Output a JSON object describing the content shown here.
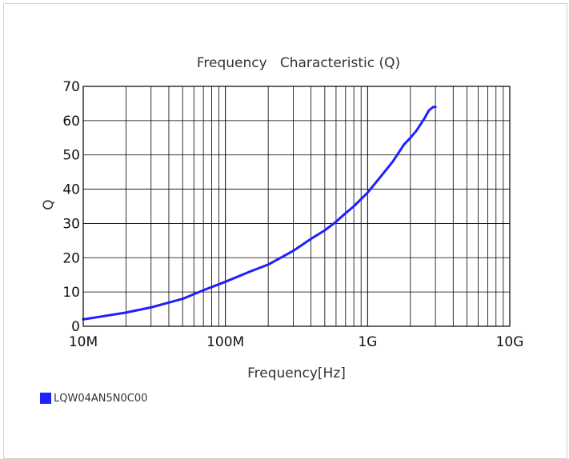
{
  "chart_data": {
    "type": "line",
    "title": "Frequency   Characteristic (Q)",
    "xlabel": "Frequency[Hz]",
    "ylabel": "Q",
    "x_scale": "log",
    "xlim": [
      "10M",
      "10G"
    ],
    "ylim": [
      0,
      70
    ],
    "x_ticks": [
      {
        "label": "10M",
        "value": 10000000
      },
      {
        "label": "100M",
        "value": 100000000
      },
      {
        "label": "1G",
        "value": 1000000000
      },
      {
        "label": "10G",
        "value": 10000000000
      }
    ],
    "y_ticks": [
      0,
      10,
      20,
      30,
      40,
      50,
      60,
      70
    ],
    "grid": true,
    "legend_placement": "bottom-left",
    "series": [
      {
        "name": "LQW04AN5N0C00",
        "color": "#1f1fff",
        "x": [
          10000000,
          20000000,
          30000000,
          50000000,
          70000000,
          100000000,
          150000000,
          200000000,
          300000000,
          400000000,
          500000000,
          600000000,
          700000000,
          800000000,
          1000000000,
          1200000000,
          1500000000,
          1800000000,
          2000000000,
          2200000000,
          2500000000,
          2700000000,
          2900000000,
          3000000000
        ],
        "y": [
          2,
          4,
          5.5,
          8,
          10.5,
          13,
          16,
          18,
          22,
          25.5,
          28,
          30.5,
          33,
          35,
          39,
          43,
          48,
          53,
          55,
          57,
          60.5,
          63,
          64,
          64
        ]
      }
    ]
  }
}
